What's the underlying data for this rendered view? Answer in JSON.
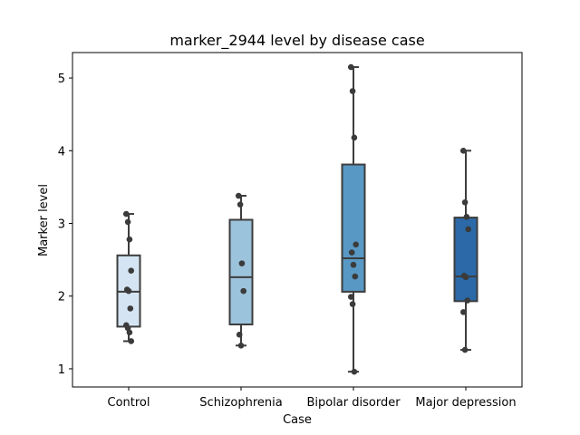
{
  "chart_data": {
    "type": "box",
    "title": "marker_2944 level by disease case",
    "xlabel": "Case",
    "ylabel": "Marker level",
    "ylim": [
      0.75,
      5.35
    ],
    "yticks": [
      1,
      2,
      3,
      4,
      5
    ],
    "categories": [
      "Control",
      "Schizophrenia",
      "Bipolar disorder",
      "Major depression"
    ],
    "colors": [
      "#d4e4f2",
      "#9cc3dc",
      "#5898c4",
      "#2b69a8"
    ],
    "boxes": [
      {
        "min": 1.38,
        "q1": 1.58,
        "median": 2.06,
        "q3": 2.56,
        "max": 3.13
      },
      {
        "min": 1.32,
        "q1": 1.61,
        "median": 2.26,
        "q3": 3.05,
        "max": 3.38
      },
      {
        "min": 0.96,
        "q1": 2.06,
        "median": 2.52,
        "q3": 3.81,
        "max": 5.15
      },
      {
        "min": 1.26,
        "q1": 1.93,
        "median": 2.27,
        "q3": 3.08,
        "max": 4.0
      }
    ],
    "points": [
      [
        3.13,
        3.02,
        2.78,
        2.35,
        2.09,
        2.07,
        1.83,
        1.6,
        1.56,
        1.5,
        1.38
      ],
      [
        3.38,
        3.26,
        2.45,
        2.07,
        1.47,
        1.32
      ],
      [
        5.15,
        4.82,
        4.18,
        2.71,
        2.6,
        2.43,
        2.27,
        1.99,
        1.89,
        0.96
      ],
      [
        4.0,
        3.29,
        3.09,
        2.92,
        2.28,
        2.26,
        1.94,
        1.78,
        1.26
      ]
    ]
  }
}
